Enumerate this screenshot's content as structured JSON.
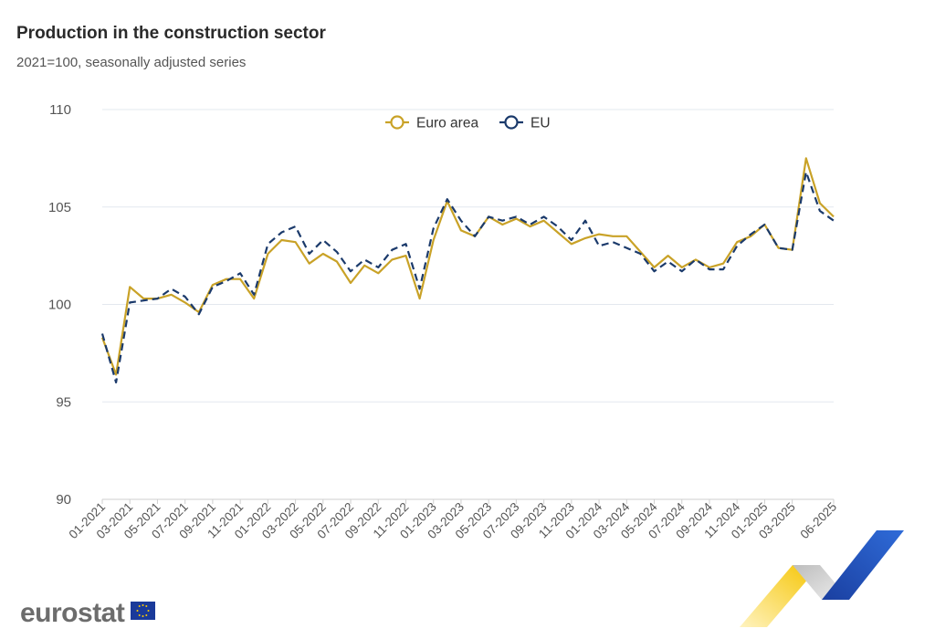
{
  "header": {
    "title": "Production in the construction sector",
    "subtitle": "2021=100, seasonally adjusted series"
  },
  "branding": {
    "logo_text": "eurostat"
  },
  "colors": {
    "euro_area": "#c9a227",
    "eu": "#1b3a6b",
    "grid": "#e3e8ef",
    "flag_blue": "#1a3a9a",
    "flag_star": "#ffcc00"
  },
  "chart_data": {
    "type": "line",
    "title": "Production in the construction sector",
    "subtitle": "2021=100, seasonally adjusted series",
    "xlabel": "",
    "ylabel": "",
    "ylim": [
      90,
      110
    ],
    "yticks": [
      "90",
      "95",
      "100",
      "105",
      "110"
    ],
    "grid": true,
    "legend_position": "top-center",
    "x": [
      "01-2021",
      "02-2021",
      "03-2021",
      "04-2021",
      "05-2021",
      "06-2021",
      "07-2021",
      "08-2021",
      "09-2021",
      "10-2021",
      "11-2021",
      "12-2021",
      "01-2022",
      "02-2022",
      "03-2022",
      "04-2022",
      "05-2022",
      "06-2022",
      "07-2022",
      "08-2022",
      "09-2022",
      "10-2022",
      "11-2022",
      "12-2022",
      "01-2023",
      "02-2023",
      "03-2023",
      "04-2023",
      "05-2023",
      "06-2023",
      "07-2023",
      "08-2023",
      "09-2023",
      "10-2023",
      "11-2023",
      "12-2023",
      "01-2024",
      "02-2024",
      "03-2024",
      "04-2024",
      "05-2024",
      "06-2024",
      "07-2024",
      "08-2024",
      "09-2024",
      "10-2024",
      "11-2024",
      "12-2024",
      "01-2025",
      "02-2025",
      "03-2025",
      "04-2025",
      "05-2025",
      "06-2025"
    ],
    "x_tick_labels": [
      "01-2021",
      "03-2021",
      "05-2021",
      "07-2021",
      "09-2021",
      "11-2021",
      "01-2022",
      "03-2022",
      "05-2022",
      "07-2022",
      "09-2022",
      "11-2022",
      "01-2023",
      "03-2023",
      "05-2023",
      "07-2023",
      "09-2023",
      "11-2023",
      "01-2024",
      "03-2024",
      "05-2024",
      "07-2024",
      "09-2024",
      "11-2024",
      "01-2025",
      "03-2025",
      "06-2025"
    ],
    "series": [
      {
        "name": "Euro area",
        "style": "solid",
        "values": [
          98.3,
          96.4,
          100.9,
          100.3,
          100.3,
          100.5,
          100.1,
          99.6,
          101.0,
          101.3,
          101.3,
          100.3,
          102.6,
          103.3,
          103.2,
          102.1,
          102.6,
          102.2,
          101.1,
          102.0,
          101.6,
          102.3,
          102.5,
          100.3,
          103.3,
          105.3,
          103.8,
          103.5,
          104.5,
          104.1,
          104.4,
          104.0,
          104.3,
          103.7,
          103.1,
          103.4,
          103.6,
          103.5,
          103.5,
          102.7,
          101.9,
          102.5,
          101.9,
          102.3,
          101.9,
          102.1,
          103.2,
          103.5,
          104.1,
          102.9,
          102.8,
          107.5,
          105.2,
          104.5
        ]
      },
      {
        "name": "EU",
        "style": "dashed",
        "values": [
          98.5,
          96.0,
          100.1,
          100.2,
          100.3,
          100.8,
          100.4,
          99.5,
          100.9,
          101.2,
          101.6,
          100.5,
          103.1,
          103.7,
          104.0,
          102.6,
          103.3,
          102.7,
          101.7,
          102.3,
          101.9,
          102.8,
          103.1,
          100.8,
          103.9,
          105.4,
          104.3,
          103.5,
          104.5,
          104.3,
          104.5,
          104.1,
          104.5,
          104.0,
          103.3,
          104.3,
          103.0,
          103.2,
          102.9,
          102.6,
          101.7,
          102.2,
          101.7,
          102.3,
          101.8,
          101.8,
          103.0,
          103.6,
          104.1,
          102.9,
          102.8,
          106.8,
          104.8,
          104.3
        ]
      }
    ]
  }
}
